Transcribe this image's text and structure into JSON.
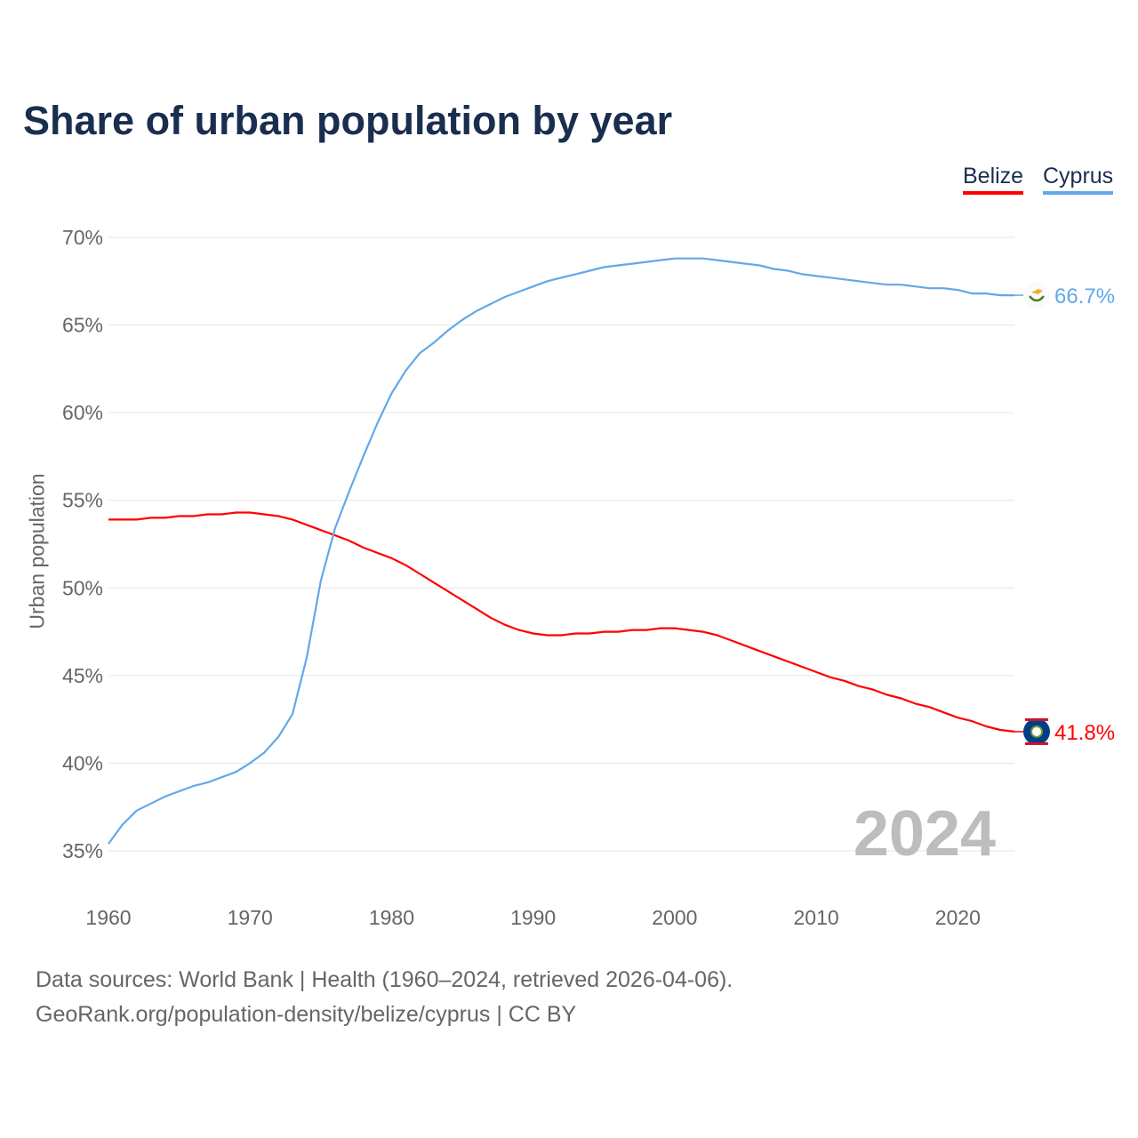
{
  "title": "Share of urban population by year",
  "legend": [
    "Belize",
    "Cyprus"
  ],
  "sources": {
    "line1": "Data sources: World Bank | Health (1960–2024, retrieved 2026-04-06).",
    "line2": "GeoRank.org/population-density/belize/cyprus | CC BY"
  },
  "chart_data": {
    "type": "line",
    "title": "Share of urban population by year",
    "xlabel": "",
    "ylabel": "Urban population",
    "xlim": [
      1960,
      2024
    ],
    "ylim": [
      35,
      70
    ],
    "xticks": [
      1960,
      1970,
      1980,
      1990,
      2000,
      2010,
      2020
    ],
    "yticks": [
      35,
      40,
      45,
      50,
      55,
      60,
      65,
      70
    ],
    "ytick_labels": [
      "35%",
      "40%",
      "45%",
      "50%",
      "55%",
      "60%",
      "65%",
      "70%"
    ],
    "grid": true,
    "legend_position": "top-right",
    "year_watermark": "2024",
    "series": [
      {
        "name": "Belize",
        "color": "#ff0000",
        "flag": "belize-flag-icon",
        "end_label": "41.8%",
        "values": [
          53.9,
          53.9,
          53.9,
          54.0,
          54.0,
          54.1,
          54.1,
          54.2,
          54.2,
          54.3,
          54.3,
          54.2,
          54.1,
          53.9,
          53.6,
          53.3,
          53.0,
          52.7,
          52.3,
          52.0,
          51.7,
          51.3,
          50.8,
          50.3,
          49.8,
          49.3,
          48.8,
          48.3,
          47.9,
          47.6,
          47.4,
          47.3,
          47.3,
          47.4,
          47.4,
          47.5,
          47.5,
          47.6,
          47.6,
          47.7,
          47.7,
          47.6,
          47.5,
          47.3,
          47.0,
          46.7,
          46.4,
          46.1,
          45.8,
          45.5,
          45.2,
          44.9,
          44.7,
          44.4,
          44.2,
          43.9,
          43.7,
          43.4,
          43.2,
          42.9,
          42.6,
          42.4,
          42.1,
          41.9,
          41.8
        ]
      },
      {
        "name": "Cyprus",
        "color": "#63a8e8",
        "flag": "cyprus-flag-icon",
        "end_label": "66.7%",
        "values": [
          35.4,
          36.5,
          37.3,
          37.7,
          38.1,
          38.4,
          38.7,
          38.9,
          39.2,
          39.5,
          40.0,
          40.6,
          41.5,
          42.8,
          46.0,
          50.4,
          53.4,
          55.5,
          57.5,
          59.4,
          61.1,
          62.4,
          63.4,
          64.0,
          64.7,
          65.3,
          65.8,
          66.2,
          66.6,
          66.9,
          67.2,
          67.5,
          67.7,
          67.9,
          68.1,
          68.3,
          68.4,
          68.5,
          68.6,
          68.7,
          68.8,
          68.8,
          68.8,
          68.7,
          68.6,
          68.5,
          68.4,
          68.2,
          68.1,
          67.9,
          67.8,
          67.7,
          67.6,
          67.5,
          67.4,
          67.3,
          67.3,
          67.2,
          67.1,
          67.1,
          67.0,
          66.8,
          66.8,
          66.7,
          66.7
        ]
      }
    ]
  }
}
